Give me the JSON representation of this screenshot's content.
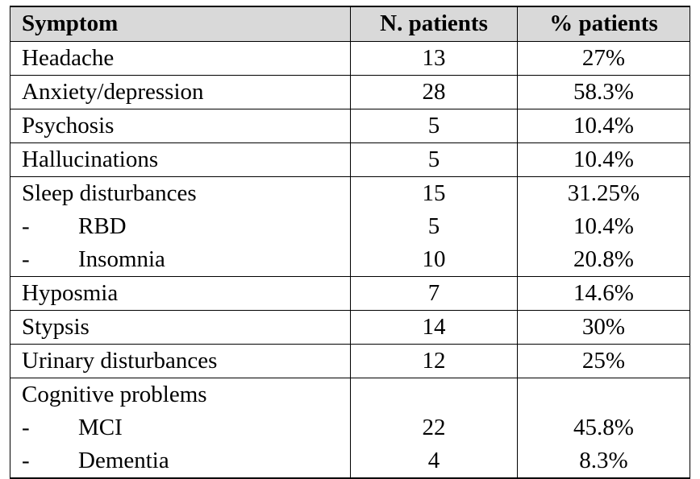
{
  "table": {
    "headers": {
      "symptom": "Symptom",
      "n_patients": "N. patients",
      "pct_patients": "% patients"
    },
    "rows": [
      {
        "symptom": "Headache",
        "n": "13",
        "pct": "27%"
      },
      {
        "symptom": "Anxiety/depression",
        "n": "28",
        "pct": "58.3%"
      },
      {
        "symptom": "Psychosis",
        "n": "5",
        "pct": "10.4%"
      },
      {
        "symptom": "Hallucinations",
        "n": "5",
        "pct": "10.4%"
      },
      {
        "symptom": "Sleep disturbances",
        "n": "15",
        "pct": "31.25%",
        "subitems": [
          {
            "dash": "-",
            "label": "RBD",
            "n": "5",
            "pct": "10.4%"
          },
          {
            "dash": "-",
            "label": "Insomnia",
            "n": "10",
            "pct": "20.8%"
          }
        ]
      },
      {
        "symptom": "Hyposmia",
        "n": "7",
        "pct": "14.6%"
      },
      {
        "symptom": "Stypsis",
        "n": "14",
        "pct": "30%"
      },
      {
        "symptom": "Urinary disturbances",
        "n": "12",
        "pct": "25%"
      },
      {
        "symptom": "Cognitive problems",
        "n": "",
        "pct": "",
        "subitems": [
          {
            "dash": "-",
            "label": "MCI",
            "n": "22",
            "pct": "45.8%"
          },
          {
            "dash": "-",
            "label": "Dementia",
            "n": "4",
            "pct": "8.3%"
          }
        ]
      }
    ]
  }
}
